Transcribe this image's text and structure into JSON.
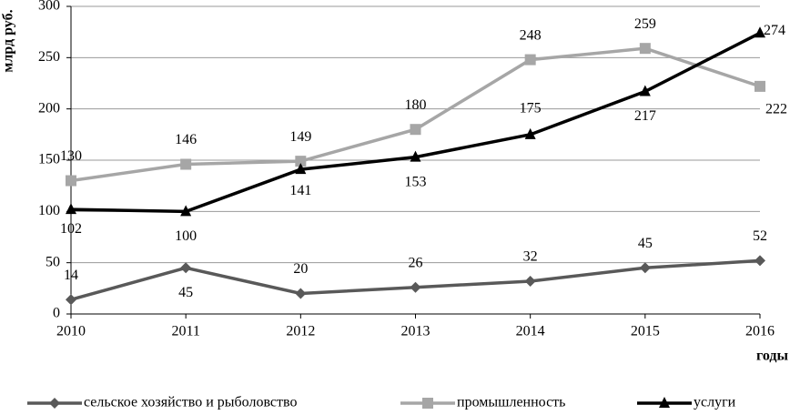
{
  "chart_data": {
    "type": "line",
    "y_label": "млрд руб.",
    "x_label": "годы",
    "x": [
      2010,
      2011,
      2012,
      2013,
      2014,
      2015,
      2016
    ],
    "xlim": [
      2010,
      2016
    ],
    "xticks": [
      2010,
      2011,
      2012,
      2013,
      2014,
      2015,
      2016
    ],
    "ylim": [
      0,
      300
    ],
    "yticks": [
      0,
      50,
      100,
      150,
      200,
      250,
      300
    ],
    "grid": true,
    "legend": "bottom",
    "series": [
      {
        "name": "сельское хозяйство и рыболовство",
        "color": "#595959",
        "marker": "diamond",
        "values": [
          14,
          45,
          20,
          26,
          32,
          45,
          52
        ]
      },
      {
        "name": "промышленность",
        "color": "#a6a6a6",
        "marker": "square",
        "values": [
          130,
          146,
          149,
          180,
          248,
          259,
          222
        ]
      },
      {
        "name": "услуги",
        "color": "#000000",
        "marker": "triangle",
        "values": [
          102,
          100,
          141,
          153,
          175,
          217,
          274
        ]
      }
    ]
  }
}
